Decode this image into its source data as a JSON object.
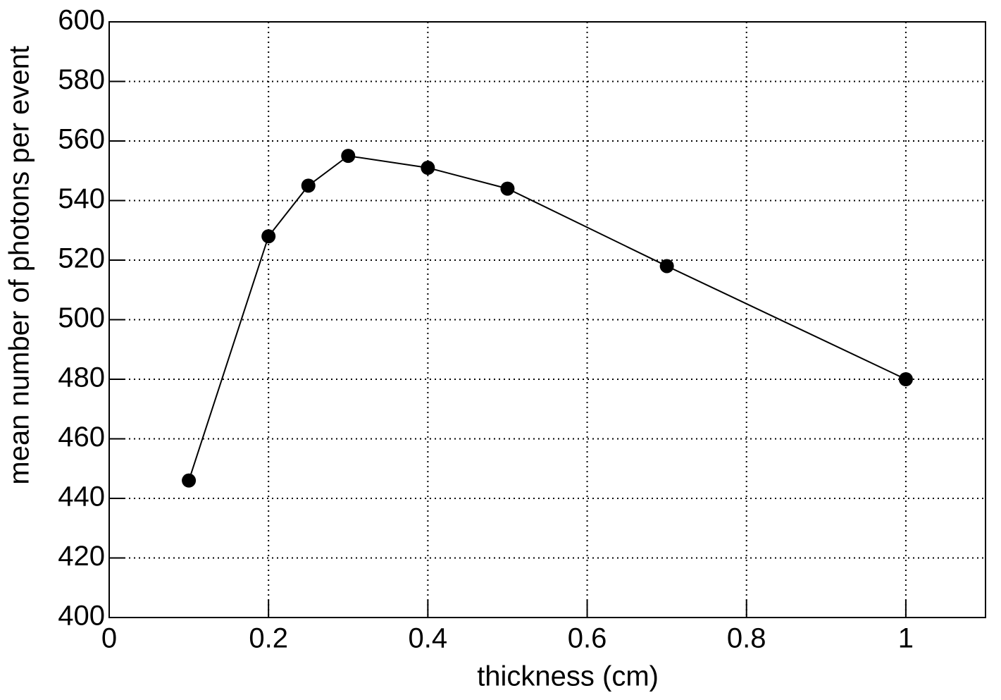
{
  "chart_data": {
    "type": "line",
    "xlabel": "thickness (cm)",
    "ylabel": "mean number of photons per event",
    "x": [
      0.1,
      0.2,
      0.25,
      0.3,
      0.4,
      0.5,
      0.7,
      1.0
    ],
    "series": [
      {
        "color": "#000000",
        "values": [
          446,
          528,
          545,
          555,
          551,
          544,
          518,
          480
        ]
      }
    ],
    "xlim": [
      0,
      1.1
    ],
    "ylim": [
      400,
      600
    ],
    "xticks": [
      0,
      0.2,
      0.4,
      0.6,
      0.8,
      1
    ],
    "yticks": [
      400,
      420,
      440,
      460,
      480,
      500,
      520,
      540,
      560,
      580,
      600
    ],
    "grid": true
  }
}
